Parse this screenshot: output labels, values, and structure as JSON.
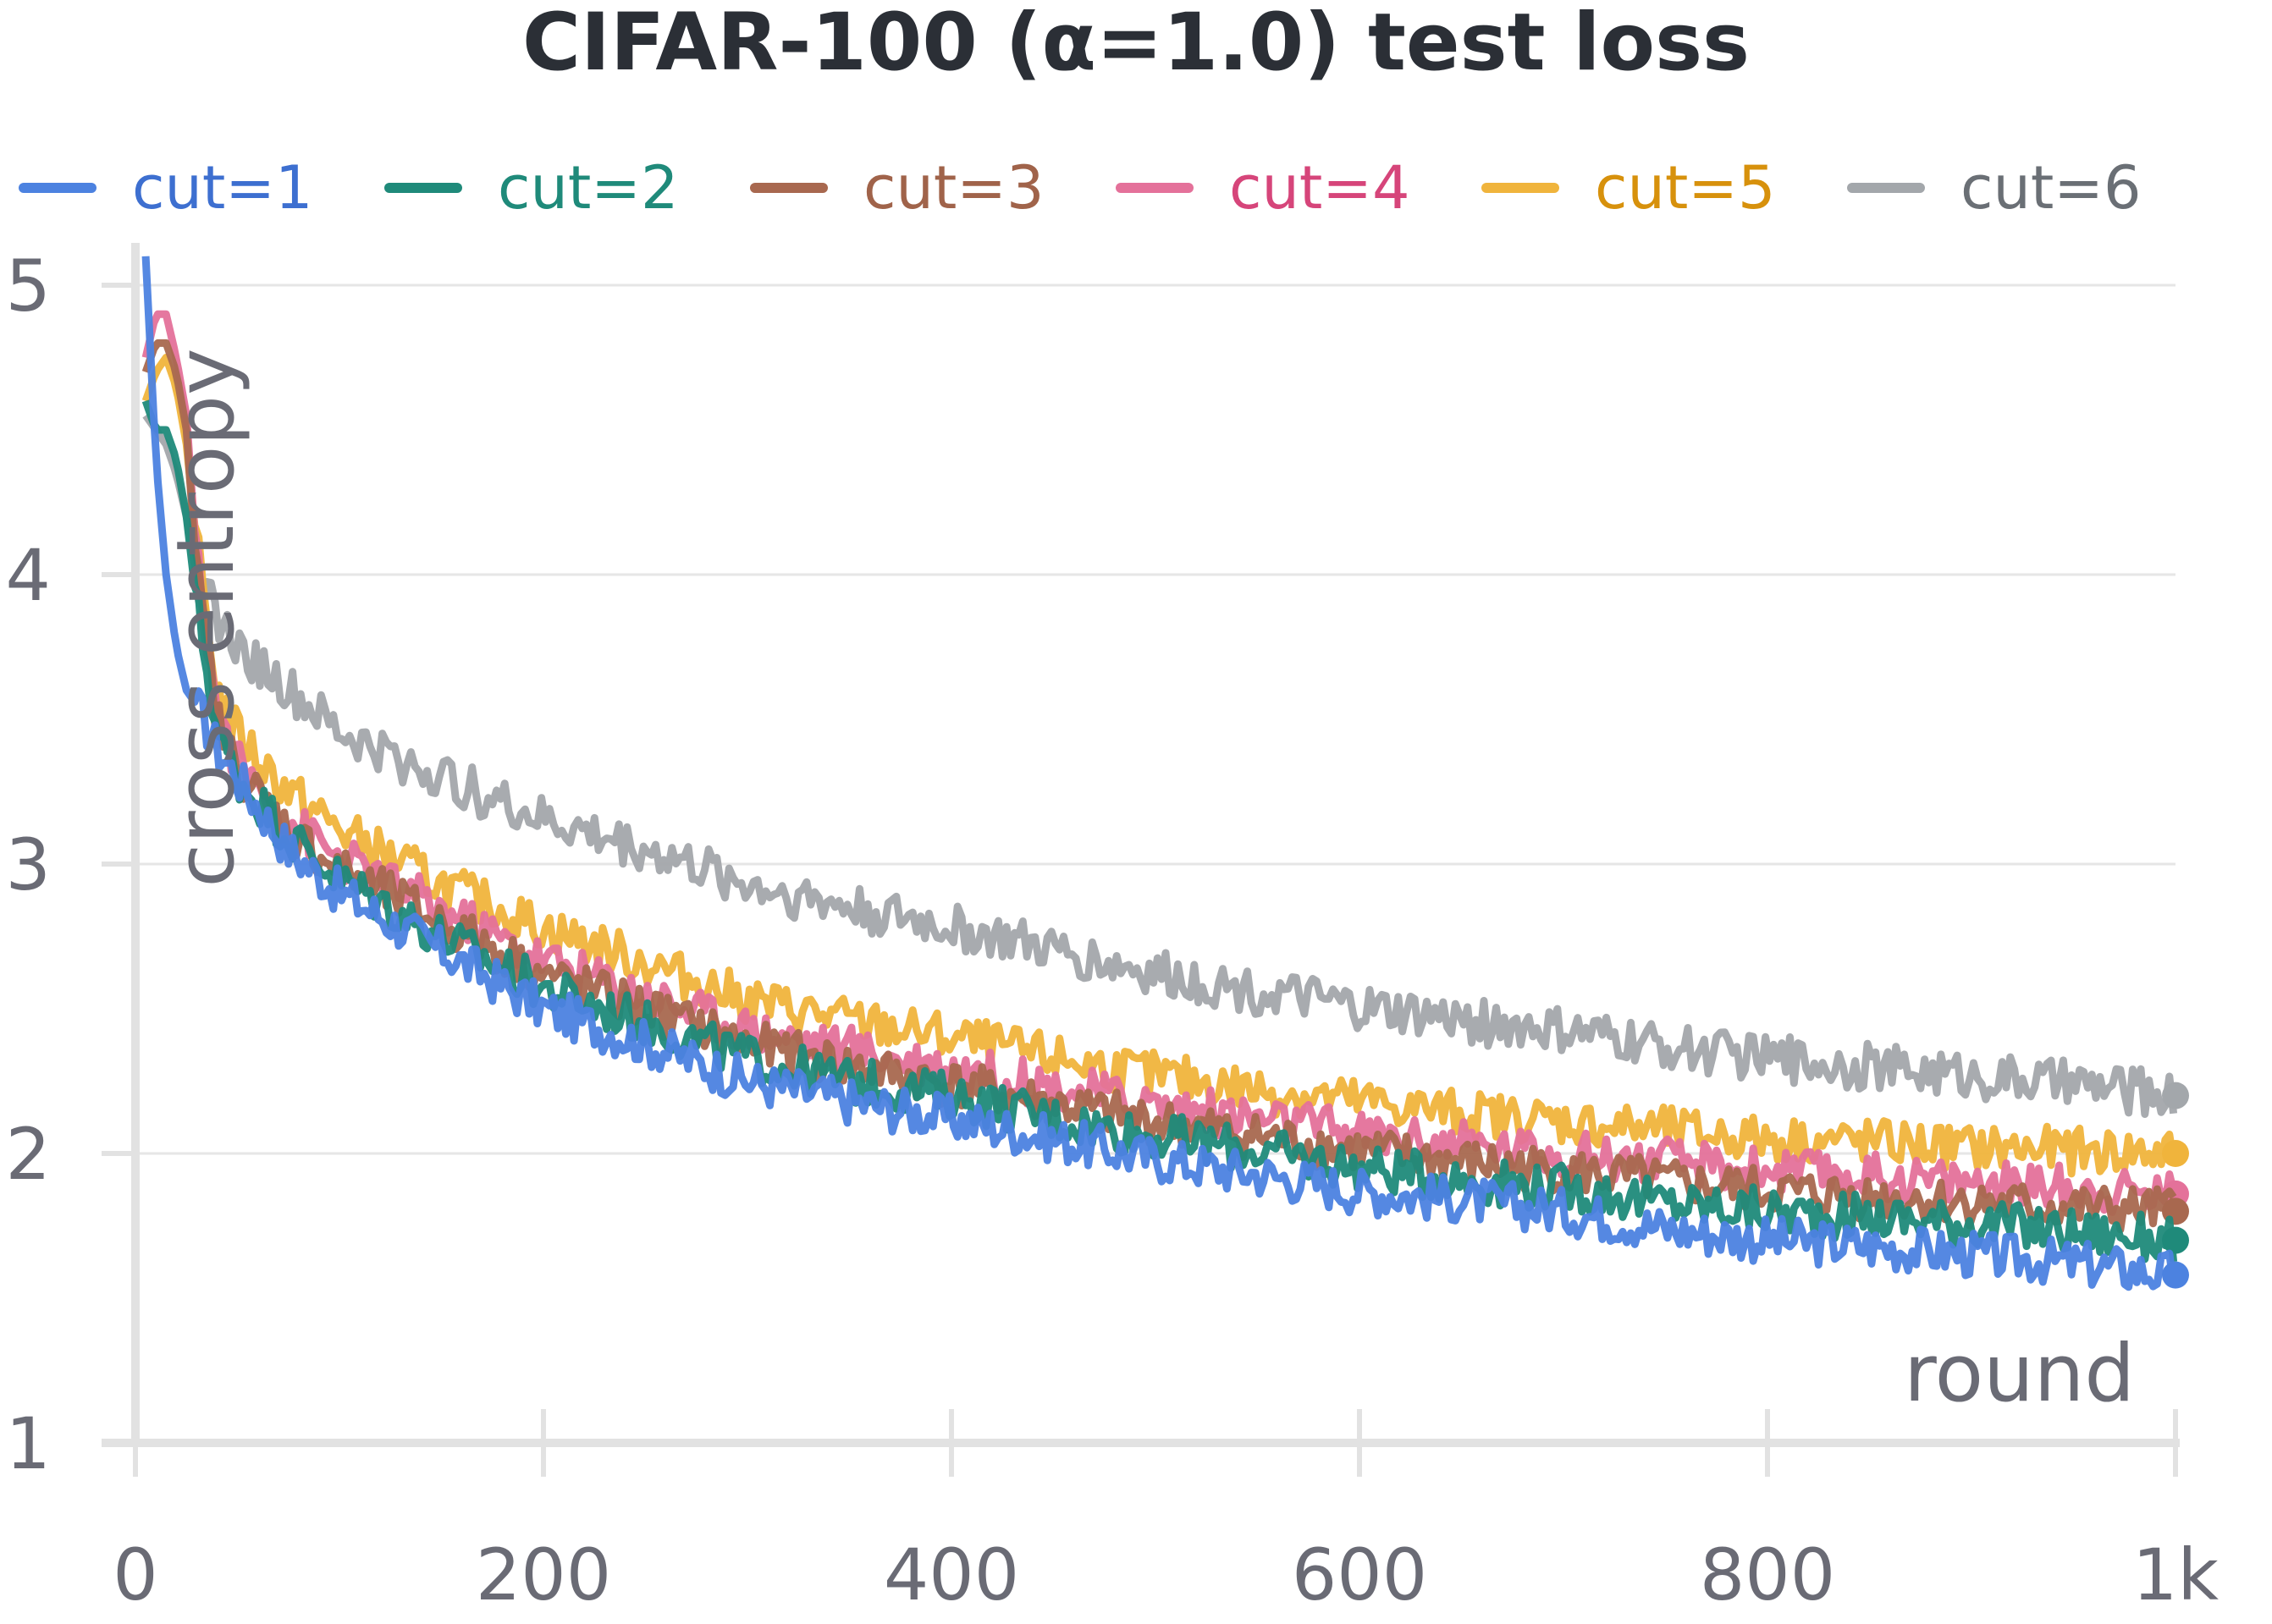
{
  "chart_data": {
    "type": "line",
    "title": "CIFAR-100 (α=1.0) test loss",
    "xlabel": "round",
    "ylabel": "cross entropy",
    "xlim": [
      0,
      1000
    ],
    "ylim": [
      1,
      5
    ],
    "x_ticks": [
      {
        "value": 0,
        "label": "0"
      },
      {
        "value": 200,
        "label": "200"
      },
      {
        "value": 400,
        "label": "400"
      },
      {
        "value": 600,
        "label": "600"
      },
      {
        "value": 800,
        "label": "800"
      },
      {
        "value": 1000,
        "label": "1k"
      }
    ],
    "y_ticks": [
      {
        "value": 1,
        "label": "1"
      },
      {
        "value": 2,
        "label": "2"
      },
      {
        "value": 3,
        "label": "3"
      },
      {
        "value": 4,
        "label": "4"
      },
      {
        "value": 5,
        "label": "5"
      }
    ],
    "grid": true,
    "legend_position": "top",
    "series": [
      {
        "name": "cut=1",
        "color": "#4c82e0",
        "x": [
          5,
          10,
          15,
          20,
          25,
          30,
          40,
          50,
          75,
          100,
          150,
          200,
          250,
          300,
          350,
          400,
          450,
          500,
          550,
          600,
          650,
          700,
          750,
          800,
          850,
          900,
          950,
          1000
        ],
        "values": [
          5.1,
          4.4,
          4.0,
          3.75,
          3.6,
          3.55,
          3.4,
          3.3,
          3.05,
          2.9,
          2.7,
          2.5,
          2.38,
          2.25,
          2.18,
          2.12,
          2.05,
          1.98,
          1.93,
          1.87,
          1.84,
          1.8,
          1.74,
          1.7,
          1.68,
          1.65,
          1.62,
          1.58
        ]
      },
      {
        "name": "cut=2",
        "color": "#1f8a7a",
        "x": [
          5,
          10,
          15,
          20,
          25,
          30,
          40,
          50,
          75,
          100,
          150,
          200,
          250,
          300,
          350,
          400,
          450,
          500,
          550,
          600,
          650,
          700,
          750,
          800,
          850,
          900,
          950,
          1000
        ],
        "values": [
          4.6,
          4.5,
          4.5,
          4.4,
          4.2,
          3.9,
          3.45,
          3.3,
          3.1,
          2.95,
          2.75,
          2.57,
          2.45,
          2.33,
          2.25,
          2.2,
          2.12,
          2.06,
          2.01,
          1.95,
          1.91,
          1.88,
          1.83,
          1.8,
          1.78,
          1.76,
          1.73,
          1.7
        ]
      },
      {
        "name": "cut=3",
        "color": "#a8684f",
        "x": [
          5,
          10,
          15,
          20,
          25,
          30,
          40,
          50,
          75,
          100,
          150,
          200,
          250,
          300,
          350,
          400,
          450,
          500,
          550,
          600,
          650,
          700,
          750,
          800,
          850,
          900,
          950,
          1000
        ],
        "values": [
          4.7,
          4.8,
          4.8,
          4.7,
          4.5,
          4.0,
          3.5,
          3.32,
          3.12,
          2.98,
          2.8,
          2.62,
          2.5,
          2.38,
          2.3,
          2.24,
          2.17,
          2.11,
          2.06,
          2.01,
          1.97,
          1.94,
          1.9,
          1.87,
          1.85,
          1.83,
          1.81,
          1.8
        ]
      },
      {
        "name": "cut=4",
        "color": "#e4719a",
        "x": [
          5,
          10,
          15,
          20,
          25,
          30,
          40,
          50,
          75,
          100,
          150,
          200,
          250,
          300,
          350,
          400,
          450,
          500,
          550,
          600,
          650,
          700,
          750,
          800,
          850,
          900,
          950,
          1000
        ],
        "values": [
          4.75,
          4.9,
          4.9,
          4.75,
          4.55,
          4.05,
          3.52,
          3.35,
          3.15,
          3.02,
          2.84,
          2.67,
          2.55,
          2.43,
          2.36,
          2.3,
          2.23,
          2.17,
          2.12,
          2.07,
          2.03,
          2.0,
          1.97,
          1.94,
          1.92,
          1.9,
          1.88,
          1.86
        ]
      },
      {
        "name": "cut=5",
        "color": "#f0b43c",
        "x": [
          5,
          10,
          15,
          20,
          25,
          30,
          40,
          50,
          75,
          100,
          150,
          200,
          250,
          300,
          350,
          400,
          450,
          500,
          550,
          600,
          650,
          700,
          750,
          800,
          850,
          900,
          950,
          1000
        ],
        "values": [
          4.6,
          4.7,
          4.75,
          4.65,
          4.45,
          4.1,
          3.6,
          3.45,
          3.25,
          3.12,
          2.93,
          2.78,
          2.66,
          2.53,
          2.46,
          2.4,
          2.33,
          2.27,
          2.22,
          2.18,
          2.14,
          2.11,
          2.08,
          2.05,
          2.04,
          2.02,
          2.01,
          2.0
        ]
      },
      {
        "name": "cut=6",
        "color": "#a3a7ab",
        "x": [
          5,
          10,
          15,
          20,
          25,
          30,
          40,
          50,
          75,
          100,
          150,
          200,
          250,
          300,
          350,
          400,
          450,
          500,
          550,
          600,
          650,
          700,
          750,
          800,
          850,
          900,
          950,
          1000
        ],
        "values": [
          4.55,
          4.5,
          4.45,
          4.35,
          4.2,
          4.0,
          3.85,
          3.75,
          3.6,
          3.45,
          3.3,
          3.15,
          3.05,
          2.93,
          2.85,
          2.78,
          2.7,
          2.62,
          2.56,
          2.5,
          2.46,
          2.42,
          2.37,
          2.33,
          2.3,
          2.27,
          2.24,
          2.2
        ]
      }
    ]
  }
}
